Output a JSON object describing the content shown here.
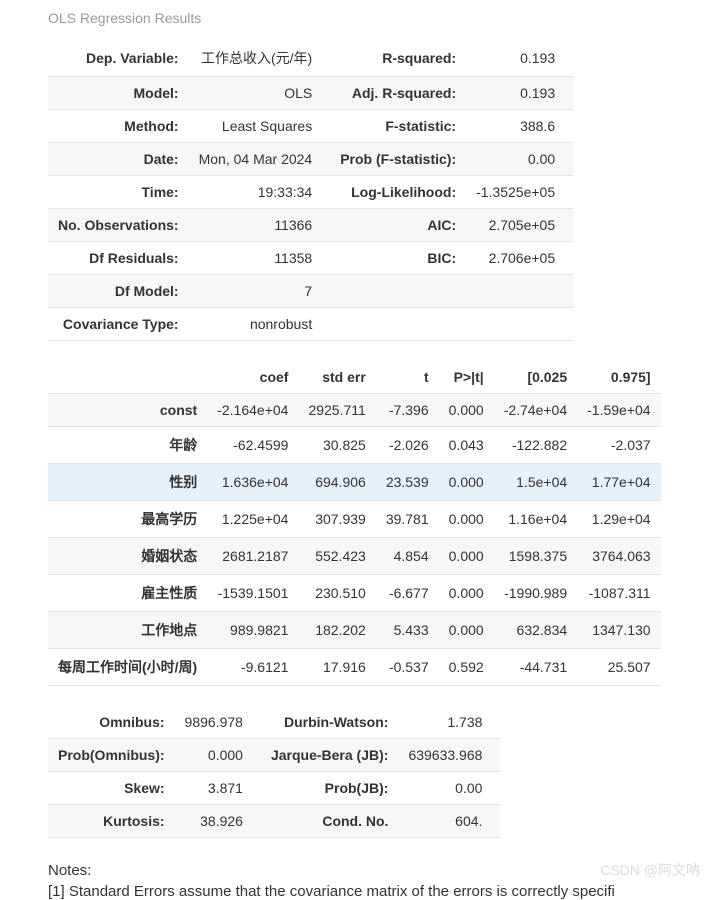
{
  "title": "OLS Regression Results",
  "summary": {
    "rows": [
      {
        "l1": "Dep. Variable:",
        "v1": "工作总收入(元/年)",
        "l2": "R-squared:",
        "v2": "0.193"
      },
      {
        "l1": "Model:",
        "v1": "OLS",
        "l2": "Adj. R-squared:",
        "v2": "0.193"
      },
      {
        "l1": "Method:",
        "v1": "Least Squares",
        "l2": "F-statistic:",
        "v2": "388.6"
      },
      {
        "l1": "Date:",
        "v1": "Mon, 04 Mar 2024",
        "l2": "Prob (F-statistic):",
        "v2": "0.00"
      },
      {
        "l1": "Time:",
        "v1": "19:33:34",
        "l2": "Log-Likelihood:",
        "v2": "-1.3525e+05"
      },
      {
        "l1": "No. Observations:",
        "v1": "11366",
        "l2": "AIC:",
        "v2": "2.705e+05"
      },
      {
        "l1": "Df Residuals:",
        "v1": "11358",
        "l2": "BIC:",
        "v2": "2.706e+05"
      },
      {
        "l1": "Df Model:",
        "v1": "7",
        "l2": "",
        "v2": ""
      },
      {
        "l1": "Covariance Type:",
        "v1": "nonrobust",
        "l2": "",
        "v2": ""
      }
    ]
  },
  "coef": {
    "headers": [
      "",
      "coef",
      "std err",
      "t",
      "P>|t|",
      "[0.025",
      "0.975]"
    ],
    "rows": [
      {
        "name": "const",
        "coef": "-2.164e+04",
        "stderr": "2925.711",
        "t": "-7.396",
        "p": "0.000",
        "lo": "-2.74e+04",
        "hi": "-1.59e+04",
        "cls": "even"
      },
      {
        "name": "年龄",
        "coef": "-62.4599",
        "stderr": "30.825",
        "t": "-2.026",
        "p": "0.043",
        "lo": "-122.882",
        "hi": "-2.037",
        "cls": "odd"
      },
      {
        "name": "性别",
        "coef": "1.636e+04",
        "stderr": "694.906",
        "t": "23.539",
        "p": "0.000",
        "lo": "1.5e+04",
        "hi": "1.77e+04",
        "cls": "highlight"
      },
      {
        "name": "最高学历",
        "coef": "1.225e+04",
        "stderr": "307.939",
        "t": "39.781",
        "p": "0.000",
        "lo": "1.16e+04",
        "hi": "1.29e+04",
        "cls": "odd"
      },
      {
        "name": "婚姻状态",
        "coef": "2681.2187",
        "stderr": "552.423",
        "t": "4.854",
        "p": "0.000",
        "lo": "1598.375",
        "hi": "3764.063",
        "cls": "even"
      },
      {
        "name": "雇主性质",
        "coef": "-1539.1501",
        "stderr": "230.510",
        "t": "-6.677",
        "p": "0.000",
        "lo": "-1990.989",
        "hi": "-1087.311",
        "cls": "odd"
      },
      {
        "name": "工作地点",
        "coef": "989.9821",
        "stderr": "182.202",
        "t": "5.433",
        "p": "0.000",
        "lo": "632.834",
        "hi": "1347.130",
        "cls": "even"
      },
      {
        "name": "每周工作时间(小时/周)",
        "coef": "-9.6121",
        "stderr": "17.916",
        "t": "-0.537",
        "p": "0.592",
        "lo": "-44.731",
        "hi": "25.507",
        "cls": "odd"
      }
    ]
  },
  "diag": {
    "rows": [
      {
        "l1": "Omnibus:",
        "v1": "9896.978",
        "l2": "Durbin-Watson:",
        "v2": "1.738"
      },
      {
        "l1": "Prob(Omnibus):",
        "v1": "0.000",
        "l2": "Jarque-Bera (JB):",
        "v2": "639633.968"
      },
      {
        "l1": "Skew:",
        "v1": "3.871",
        "l2": "Prob(JB):",
        "v2": "0.00"
      },
      {
        "l1": "Kurtosis:",
        "v1": "38.926",
        "l2": "Cond. No.",
        "v2": "604."
      }
    ]
  },
  "notes": {
    "heading": "Notes:",
    "line1": "[1] Standard Errors assume that the covariance matrix of the errors is correctly specifi"
  },
  "watermark": "CSDN @阿文呐"
}
